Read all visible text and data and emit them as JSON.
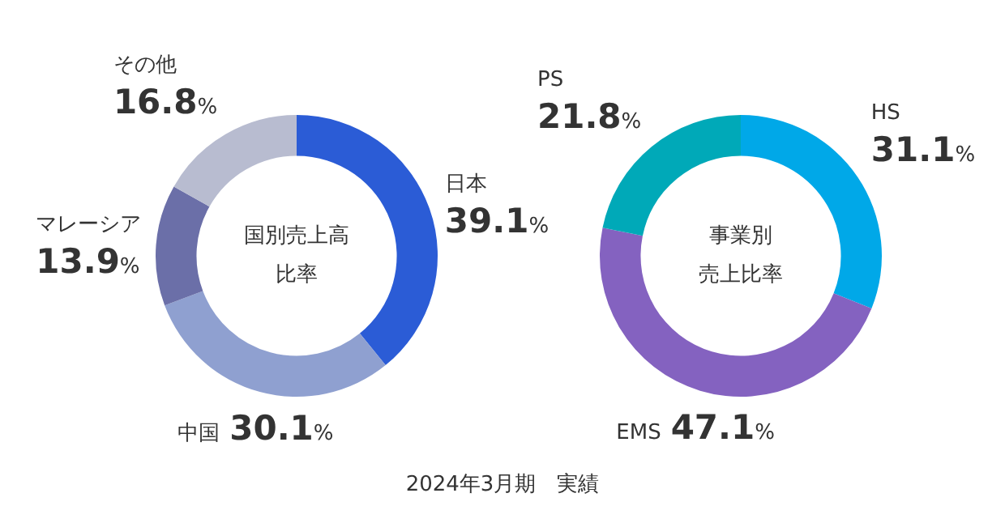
{
  "chart_data": [
    {
      "type": "donut",
      "title": "国別売上高比率",
      "categories": [
        "日本",
        "中国",
        "マレーシア",
        "その他"
      ],
      "values": [
        39.1,
        30.1,
        13.9,
        16.8
      ],
      "colors": [
        "#2b5cd6",
        "#8fa0d0",
        "#6b6fa8",
        "#b8bcd0"
      ],
      "value_labels": [
        "39.1%",
        "30.1%",
        "13.9%",
        "16.8%"
      ],
      "legend": false,
      "annotations": [
        "2024年3月期　実績"
      ]
    },
    {
      "type": "donut",
      "title": "事業別売上比率",
      "categories": [
        "HS",
        "EMS",
        "PS"
      ],
      "values": [
        31.1,
        47.1,
        21.8
      ],
      "colors": [
        "#00a8e8",
        "#8462c0",
        "#00a9b8"
      ],
      "value_labels": [
        "31.1%",
        "47.1%",
        "21.8%"
      ],
      "legend": false
    }
  ]
}
